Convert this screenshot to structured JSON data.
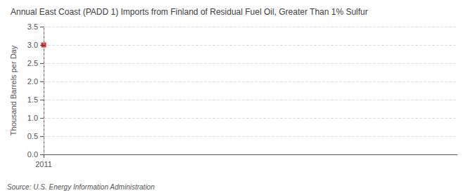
{
  "chart_data": {
    "type": "scatter",
    "title": "Annual East Coast (PADD 1) Imports from Finland of Residual Fuel Oil, Greater Than 1% Sulfur",
    "ylabel": "Thousand Barrels per Day",
    "annotations": [
      "Source: U.S. Energy Information Administration"
    ],
    "x": [
      2011
    ],
    "values": [
      3.0
    ],
    "color": "#cc0000",
    "marker": "square",
    "xlim": [
      2011,
      2012.5
    ],
    "xticks": [
      2011
    ],
    "ylim": [
      0.0,
      3.5
    ],
    "yticks": [
      {
        "value": 0.0,
        "label": "0.0"
      },
      0.5,
      {
        "value": 1.0,
        "label": "1.0"
      },
      1.5,
      {
        "value": 2.0,
        "label": "2.0"
      },
      2.5,
      {
        "value": 3.0,
        "label": "3.0"
      },
      3.5
    ],
    "grid": true
  }
}
